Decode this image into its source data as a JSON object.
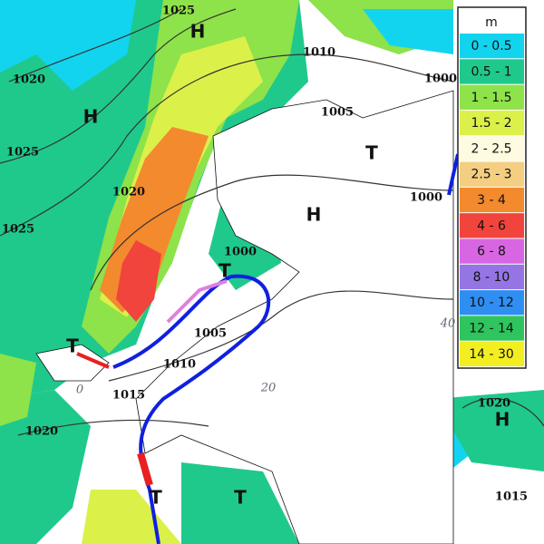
{
  "map": {
    "labels": [
      {
        "text": "1025",
        "kind": "isobar"
      },
      {
        "text": "H",
        "kind": "center"
      },
      {
        "text": "1010",
        "kind": "isobar"
      },
      {
        "text": "1020",
        "kind": "isobar"
      },
      {
        "text": "H",
        "kind": "center"
      },
      {
        "text": "1005",
        "kind": "isobar"
      },
      {
        "text": "1000",
        "kind": "isobar"
      },
      {
        "text": "T",
        "kind": "center"
      },
      {
        "text": "1025",
        "kind": "isobar"
      },
      {
        "text": "1020",
        "kind": "isobar"
      },
      {
        "text": "1000",
        "kind": "isobar"
      },
      {
        "text": "H",
        "kind": "center"
      },
      {
        "text": "1025",
        "kind": "isobar"
      },
      {
        "text": "1000",
        "kind": "isobar"
      },
      {
        "text": "T",
        "kind": "center"
      },
      {
        "text": "1005",
        "kind": "isobar"
      },
      {
        "text": "T",
        "kind": "center"
      },
      {
        "text": "1010",
        "kind": "isobar"
      },
      {
        "text": "40",
        "kind": "isoline"
      },
      {
        "text": "0",
        "kind": "isoline"
      },
      {
        "text": "1015",
        "kind": "isobar"
      },
      {
        "text": "20",
        "kind": "isoline"
      },
      {
        "text": "1020",
        "kind": "isobar"
      },
      {
        "text": "H",
        "kind": "center"
      },
      {
        "text": "1020",
        "kind": "isobar"
      },
      {
        "text": "T",
        "kind": "center"
      },
      {
        "text": "T",
        "kind": "center"
      },
      {
        "text": "1015",
        "kind": "isobar"
      }
    ]
  },
  "legend": {
    "unit": "m",
    "items": [
      {
        "label": "0 - 0.5",
        "color": "#13d4ee"
      },
      {
        "label": "0.5 - 1",
        "color": "#1fc98c"
      },
      {
        "label": "1 - 1.5",
        "color": "#8ee24a"
      },
      {
        "label": "1.5 - 2",
        "color": "#dcf04a"
      },
      {
        "label": "2 - 2.5",
        "color": "#fffbe0"
      },
      {
        "label": "2.5 - 3",
        "color": "#f4cf82"
      },
      {
        "label": "3 - 4",
        "color": "#f38a2e"
      },
      {
        "label": "4 - 6",
        "color": "#f0443c"
      },
      {
        "label": "6 - 8",
        "color": "#d866e2"
      },
      {
        "label": "8 - 10",
        "color": "#9575e4"
      },
      {
        "label": "10 - 12",
        "color": "#2f8ef2"
      },
      {
        "label": "12 - 14",
        "color": "#2fc45e"
      },
      {
        "label": "14 - 30",
        "color": "#f2ee22"
      }
    ]
  }
}
